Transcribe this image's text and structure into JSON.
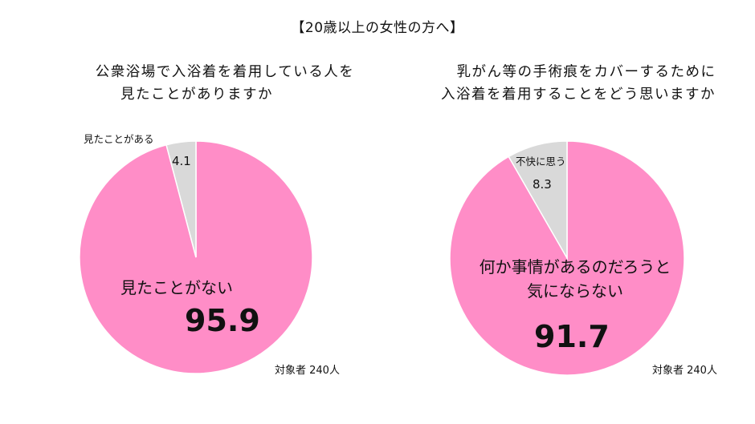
{
  "title": "【20歳以上の女性の方へ】",
  "colors": {
    "pink": "#FF8DC7",
    "gray": "#D9D9D9",
    "divider": "#FFFFFF"
  },
  "charts": [
    {
      "question_line1": "公衆浴場で入浴着を着用している人を",
      "question_line2": "見たことがありますか",
      "major_label": "見たことがない",
      "major_value": "95.9",
      "minor_label": "見たことがある",
      "minor_value": "4.1",
      "respondents": "対象者 240人"
    },
    {
      "question_line1": "乳がん等の手術痕をカバーするために",
      "question_line2": "入浴着を着用することをどう思いますか",
      "major_label_line1": "何か事情があるのだろうと",
      "major_label_line2": "気にならない",
      "major_value": "91.7",
      "minor_label": "不快に思う",
      "minor_value": "8.3",
      "respondents": "対象者 240人"
    }
  ],
  "chart_data": [
    {
      "type": "pie",
      "title": "公衆浴場で入浴着を着用している人を見たことがありますか",
      "categories": [
        "見たことがない",
        "見たことがある"
      ],
      "values": [
        95.9,
        4.1
      ],
      "colors": [
        "#FF8DC7",
        "#D9D9D9"
      ],
      "note": "対象者 240人",
      "start_angle": "12 o'clock, minor slice counter-clockwise"
    },
    {
      "type": "pie",
      "title": "乳がん等の手術痕をカバーするために入浴着を着用することをどう思いますか",
      "categories": [
        "何か事情があるのだろうと気にならない",
        "不快に思う"
      ],
      "values": [
        91.7,
        8.3
      ],
      "colors": [
        "#FF8DC7",
        "#D9D9D9"
      ],
      "note": "対象者 240人",
      "start_angle": "12 o'clock, minor slice counter-clockwise"
    }
  ],
  "group_title": "【20歳以上の女性の方へ】"
}
